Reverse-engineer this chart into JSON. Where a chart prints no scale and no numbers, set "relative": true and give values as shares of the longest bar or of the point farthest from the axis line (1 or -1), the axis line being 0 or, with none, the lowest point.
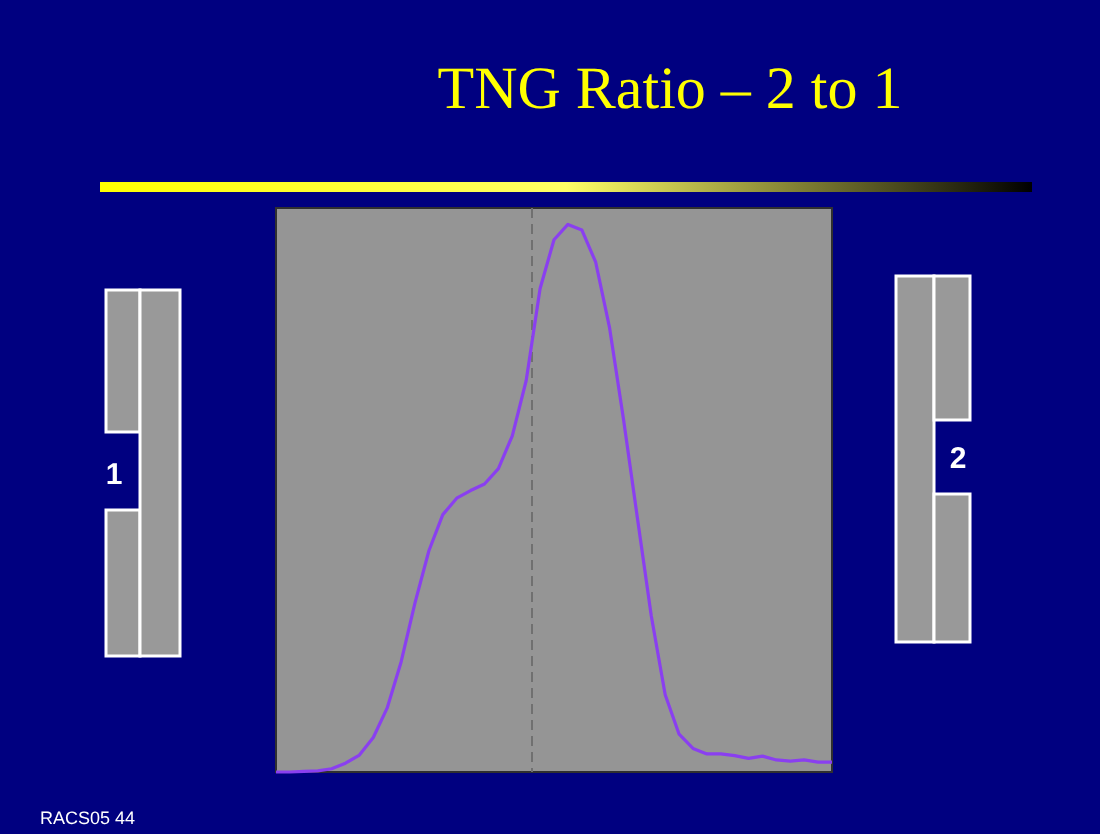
{
  "chart_data": {
    "type": "line",
    "title": "TNG Ratio – 2 to 1",
    "relative": true,
    "categories": [
      null,
      null,
      null,
      null,
      null,
      null,
      null,
      null,
      null,
      null,
      null,
      null,
      null,
      null,
      null,
      null,
      null,
      null,
      null,
      null,
      null,
      null,
      null,
      null,
      null,
      null,
      null,
      null,
      null,
      null,
      null,
      null,
      null,
      null,
      null,
      null,
      null,
      null,
      null,
      null,
      null
    ],
    "series": [
      {
        "color": "#8a3ff0",
        "values": [
          0,
          0,
          0.001,
          0.002,
          0.006,
          0.016,
          0.031,
          0.063,
          0.117,
          0.201,
          0.309,
          0.404,
          0.47,
          0.5,
          0.514,
          0.526,
          0.554,
          0.614,
          0.715,
          0.883,
          0.972,
          1,
          0.99,
          0.931,
          0.811,
          0.644,
          0.464,
          0.285,
          0.141,
          0.069,
          0.043,
          0.033,
          0.033,
          0.03,
          0.025,
          0.029,
          0.022,
          0.02,
          0.022,
          0.018,
          0.018
        ]
      }
    ],
    "annotations": [
      "1",
      "2",
      "RACS05 44"
    ],
    "grid": false,
    "marker": "none",
    "line_style": "solid"
  }
}
